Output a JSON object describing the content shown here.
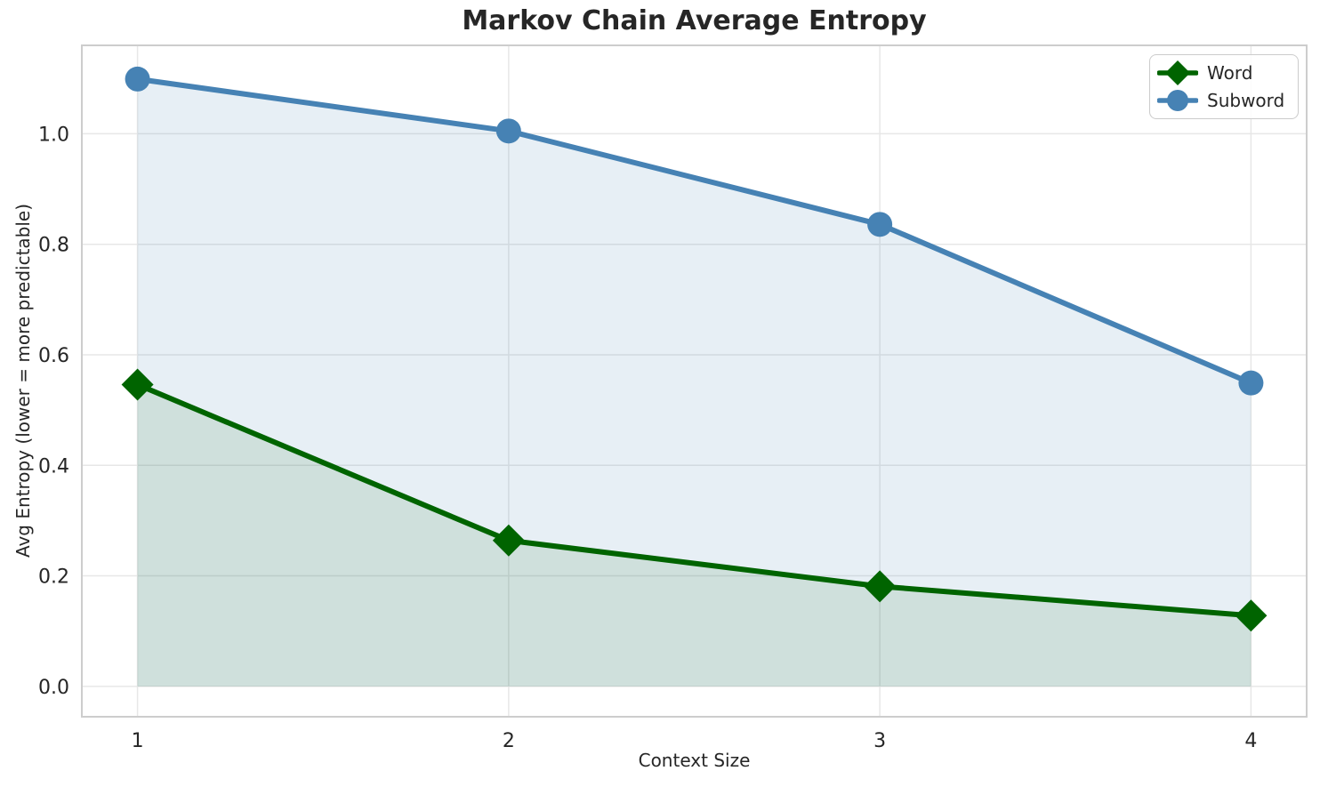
{
  "chart_data": {
    "type": "line",
    "title": "Markov Chain Average Entropy",
    "xlabel": "Context Size",
    "ylabel": "Avg Entropy (lower = more predictable)",
    "x": [
      1,
      2,
      3,
      4
    ],
    "series": [
      {
        "name": "Word",
        "values": [
          0.546,
          0.264,
          0.181,
          0.128
        ],
        "color": "#006400",
        "fill_color": "#0064001A",
        "marker": "diamond"
      },
      {
        "name": "Subword",
        "values": [
          1.099,
          1.005,
          0.836,
          0.549
        ],
        "color": "#4682B4",
        "fill_color": "#4682B421",
        "marker": "circle"
      }
    ],
    "xticks": [
      1,
      2,
      3,
      4
    ],
    "yticks": [
      0.0,
      0.2,
      0.4,
      0.6,
      0.8,
      1.0
    ],
    "xlim": [
      0.85,
      4.15
    ],
    "ylim": [
      -0.055,
      1.16
    ],
    "grid": true,
    "area_fill_baseline": 0,
    "legend_position": "upper right",
    "grid_color": "#e7e7e7",
    "spine_color": "#cdcdcd",
    "text_color": "#262626",
    "title_color": "#262626"
  }
}
